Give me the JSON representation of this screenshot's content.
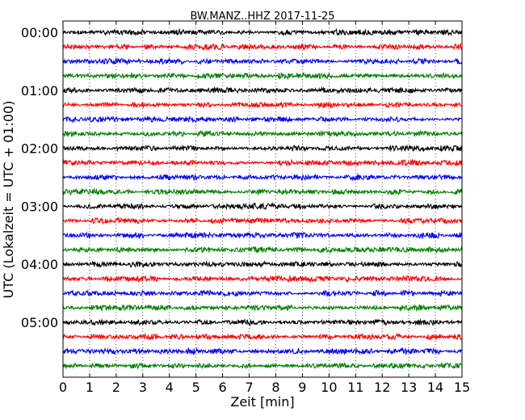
{
  "chart_data": {
    "type": "line",
    "title": "BW.MANZ..HHZ 2017-11-25",
    "xlabel": "Zeit  [min]",
    "ylabel": "UTC (Lokalzeit = UTC + 01:00)",
    "xlim": [
      0,
      15
    ],
    "x_ticks": [
      "0",
      "1",
      "2",
      "3",
      "4",
      "5",
      "6",
      "7",
      "8",
      "9",
      "10",
      "11",
      "12",
      "13",
      "14",
      "15"
    ],
    "y_ticks": [
      "00:00",
      "01:00",
      "02:00",
      "03:00",
      "04:00",
      "05:00"
    ],
    "grid": "vertical dotted",
    "trace_colors": [
      "#000000",
      "#ff0000",
      "#0000ff",
      "#007f00"
    ],
    "trace_interval_min": 15,
    "trace_count": 24
  }
}
